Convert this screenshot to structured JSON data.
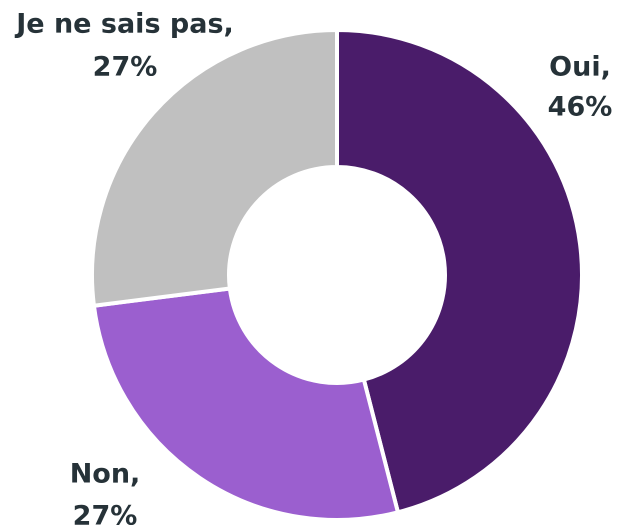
{
  "chart_data": {
    "type": "donut",
    "categories": [
      "Oui,",
      "Non,",
      "Je ne sais pas,"
    ],
    "values": [
      46,
      27,
      27
    ],
    "value_labels": [
      "46%",
      "27%",
      "27%"
    ],
    "colors": [
      "#4a1c6a",
      "#9b5fcf",
      "#c0c0c0"
    ]
  }
}
